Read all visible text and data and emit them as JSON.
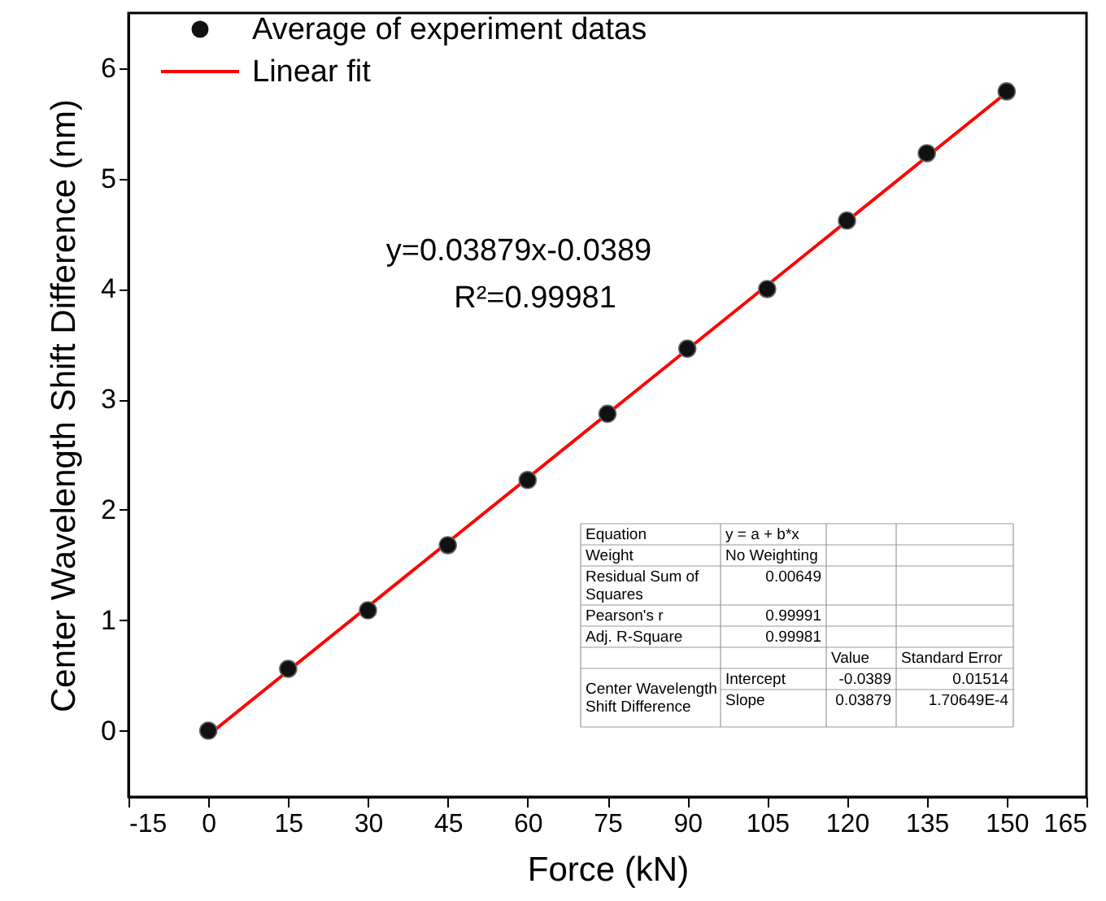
{
  "chart_data": {
    "type": "scatter",
    "xlabel": "Force (kN)",
    "ylabel": "Center Wavelength Shift Difference (nm)",
    "xlim": [
      -15,
      165
    ],
    "xticks": [
      -15,
      0,
      15,
      30,
      45,
      60,
      75,
      90,
      105,
      120,
      135,
      150,
      165
    ],
    "ylim": [
      -0.6,
      6.5
    ],
    "yticks": [
      0,
      1,
      2,
      3,
      4,
      5,
      6
    ],
    "grid": false,
    "legend": "top left",
    "series": [
      {
        "name": "Average of experiment datas",
        "marker": "circle",
        "color": "#111111",
        "x": [
          0,
          15,
          30,
          45,
          60,
          75,
          90,
          105,
          120,
          135,
          150
        ],
        "values": [
          0,
          0.56,
          1.09,
          1.68,
          2.27,
          2.87,
          3.46,
          4.0,
          4.62,
          5.23,
          5.79
        ]
      },
      {
        "name": "Linear fit",
        "type": "line",
        "color": "#ff0000",
        "marker": "none",
        "line_style": "solid",
        "x": [
          0,
          150
        ],
        "values": [
          -0.04,
          5.78
        ]
      }
    ],
    "annotations": [
      "y=0.03879x-0.0389",
      "R²=0.99981",
      "Equation",
      "y = a + b*x",
      "Weight",
      "No Weighting",
      "Residual Sum of Squares",
      "0.00649",
      "Pearson's r",
      "0.99991",
      "Adj. R-Square",
      "0.99981",
      "Value",
      "Standard Error",
      "Center Wavelength Shift Difference",
      "Intercept",
      "-0.0389",
      "0.01514",
      "Slope",
      "0.03879",
      "1.70649E-4"
    ]
  }
}
